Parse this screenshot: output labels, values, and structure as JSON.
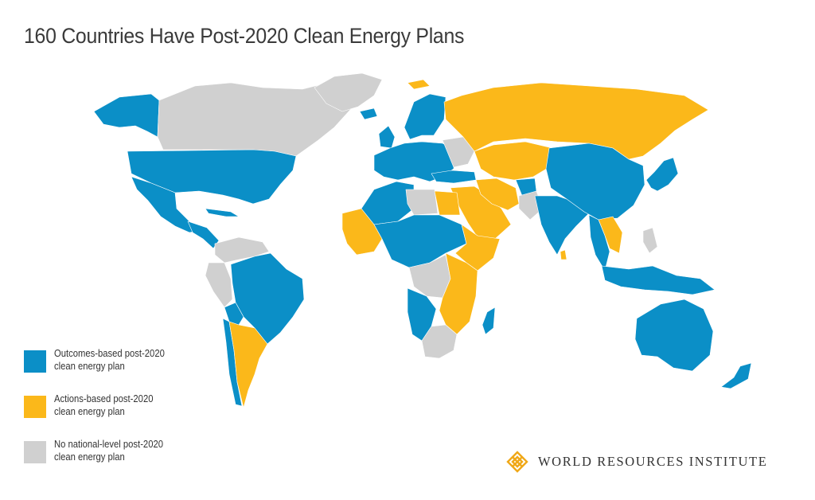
{
  "title": "160 Countries Have Post-2020 Clean Energy Plans",
  "colors": {
    "outcomes": "#0b8fc7",
    "actions": "#fbb81a",
    "none": "#d0d0d0"
  },
  "legend": [
    {
      "key": "outcomes",
      "line1": "Outcomes-based post-2020",
      "line2": "clean energy plan"
    },
    {
      "key": "actions",
      "line1": "Actions-based post-2020",
      "line2": "clean energy plan"
    },
    {
      "key": "none",
      "line1": "No national-level post-2020",
      "line2": "clean energy plan"
    }
  ],
  "logo": {
    "text": "WORLD RESOURCES INSTITUTE",
    "icon": "wri-lattice-icon"
  },
  "regions": [
    {
      "name": "alaska",
      "status": "outcomes"
    },
    {
      "name": "canada",
      "status": "none"
    },
    {
      "name": "greenland",
      "status": "none"
    },
    {
      "name": "united-states",
      "status": "outcomes"
    },
    {
      "name": "mexico",
      "status": "outcomes"
    },
    {
      "name": "central-america",
      "status": "outcomes"
    },
    {
      "name": "cuba",
      "status": "outcomes"
    },
    {
      "name": "colombia-venezuela",
      "status": "none"
    },
    {
      "name": "peru",
      "status": "none"
    },
    {
      "name": "brazil",
      "status": "outcomes"
    },
    {
      "name": "bolivia",
      "status": "outcomes"
    },
    {
      "name": "chile",
      "status": "outcomes"
    },
    {
      "name": "argentina",
      "status": "actions"
    },
    {
      "name": "iceland",
      "status": "outcomes"
    },
    {
      "name": "uk-ireland",
      "status": "outcomes"
    },
    {
      "name": "scandinavia",
      "status": "outcomes"
    },
    {
      "name": "svalbard",
      "status": "actions"
    },
    {
      "name": "europe",
      "status": "outcomes"
    },
    {
      "name": "belarus-ukraine",
      "status": "none"
    },
    {
      "name": "russia",
      "status": "actions"
    },
    {
      "name": "kazakhstan-central-asia",
      "status": "actions"
    },
    {
      "name": "turkey",
      "status": "outcomes"
    },
    {
      "name": "middle-east",
      "status": "actions"
    },
    {
      "name": "iran",
      "status": "actions"
    },
    {
      "name": "afghanistan",
      "status": "outcomes"
    },
    {
      "name": "pakistan",
      "status": "none"
    },
    {
      "name": "india",
      "status": "outcomes"
    },
    {
      "name": "sri-lanka",
      "status": "actions"
    },
    {
      "name": "china-mongolia",
      "status": "outcomes"
    },
    {
      "name": "korea-japan",
      "status": "outcomes"
    },
    {
      "name": "indochina",
      "status": "actions"
    },
    {
      "name": "southeast-asia",
      "status": "outcomes"
    },
    {
      "name": "indonesia-png",
      "status": "outcomes"
    },
    {
      "name": "philippines",
      "status": "none"
    },
    {
      "name": "australia",
      "status": "outcomes"
    },
    {
      "name": "new-zealand",
      "status": "outcomes"
    },
    {
      "name": "north-africa",
      "status": "outcomes"
    },
    {
      "name": "libya",
      "status": "none"
    },
    {
      "name": "egypt",
      "status": "actions"
    },
    {
      "name": "west-africa",
      "status": "actions"
    },
    {
      "name": "central-africa",
      "status": "outcomes"
    },
    {
      "name": "horn-of-africa",
      "status": "actions"
    },
    {
      "name": "congo-basin",
      "status": "none"
    },
    {
      "name": "east-africa",
      "status": "actions"
    },
    {
      "name": "southern-africa",
      "status": "none"
    },
    {
      "name": "angola-namibia",
      "status": "outcomes"
    },
    {
      "name": "madagascar",
      "status": "outcomes"
    }
  ]
}
